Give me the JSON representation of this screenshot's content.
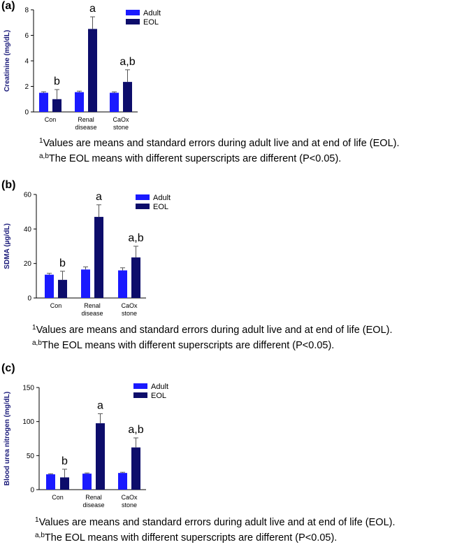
{
  "colors": {
    "adult": "#1a1aff",
    "eol": "#0d0d6b",
    "axis_label": "#1a1a7a",
    "error_bar": "#555555"
  },
  "footnotes": {
    "line1_sup": "1",
    "line1_text": "Values are means and standard errors during adult live and at end of life (EOL).",
    "line2_sup": "a,b",
    "line2_text": "The EOL means with different superscripts are different (P<0.05)."
  },
  "chart_data": [
    {
      "panel": "(a)",
      "type": "bar",
      "categories": [
        [
          "Con"
        ],
        [
          "Renal",
          "disease"
        ],
        [
          "CaOx",
          "stone"
        ]
      ],
      "series": [
        {
          "name": "Adult",
          "values": [
            1.5,
            1.55,
            1.5
          ],
          "errors": [
            0.08,
            0.08,
            0.07
          ]
        },
        {
          "name": "EOL",
          "values": [
            1.0,
            6.5,
            2.35
          ],
          "errors": [
            0.75,
            0.95,
            0.95
          ]
        }
      ],
      "letters": [
        "b",
        "a",
        "a,b"
      ],
      "ylabel": "Creatinine (mg/dL)",
      "ylim": [
        0,
        8
      ],
      "yticks": [
        0,
        2,
        4,
        6,
        8
      ],
      "legend": "top-right"
    },
    {
      "panel": "(b)",
      "type": "bar",
      "categories": [
        [
          "Con"
        ],
        [
          "Renal",
          "disease"
        ],
        [
          "CaOx",
          "stone"
        ]
      ],
      "series": [
        {
          "name": "Adult",
          "values": [
            13.5,
            16.5,
            16.0
          ],
          "errors": [
            0.8,
            1.5,
            1.5
          ]
        },
        {
          "name": "EOL",
          "values": [
            10.5,
            47.0,
            23.5
          ],
          "errors": [
            5.0,
            7.0,
            6.5
          ]
        }
      ],
      "letters": [
        "b",
        "a",
        "a,b"
      ],
      "ylabel": "SDMA (µg/dL)",
      "ylim": [
        0,
        60
      ],
      "yticks": [
        0,
        20,
        40,
        60
      ],
      "legend": "top-right"
    },
    {
      "panel": "(c)",
      "type": "bar",
      "categories": [
        [
          "Con"
        ],
        [
          "Renal",
          "disease"
        ],
        [
          "CaOx",
          "stone"
        ]
      ],
      "series": [
        {
          "name": "Adult",
          "values": [
            22.5,
            23.5,
            24.5
          ],
          "errors": [
            0.8,
            1.0,
            1.0
          ]
        },
        {
          "name": "EOL",
          "values": [
            18.0,
            97.5,
            62.0
          ],
          "errors": [
            12.0,
            14.0,
            14.0
          ]
        }
      ],
      "letters": [
        "b",
        "a",
        "a,b"
      ],
      "ylabel": "Blood urea nitrogen (mg/dL)",
      "ylim": [
        0,
        150
      ],
      "yticks": [
        0,
        50,
        100,
        150
      ],
      "legend": "top-right"
    }
  ]
}
